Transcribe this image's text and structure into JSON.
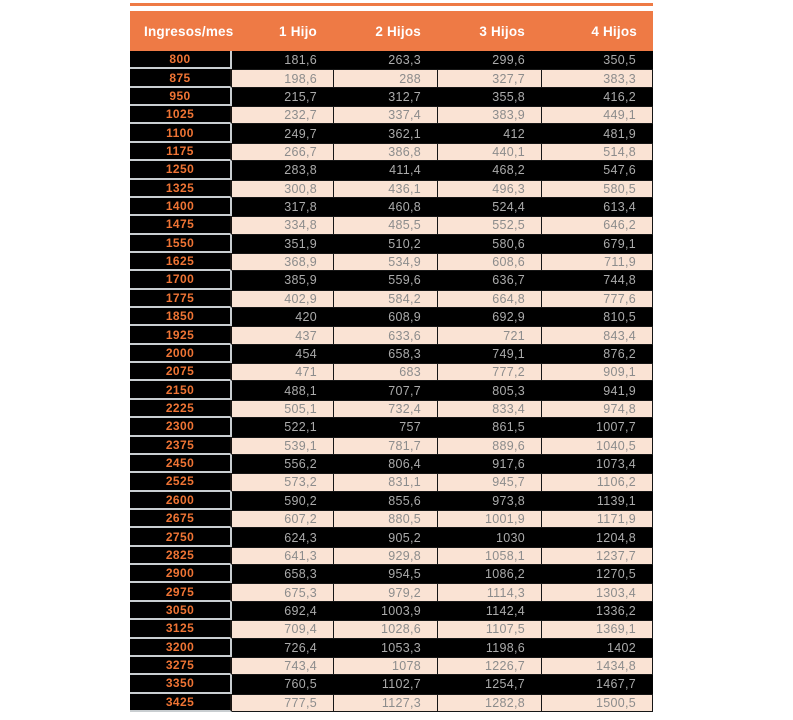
{
  "colors": {
    "header_bg": "#ee7a45",
    "income_text": "#ef7434",
    "row_pink": "#fae3d4",
    "row_dark": "#000000",
    "value_text_on_dark": "#ababab",
    "value_text_on_pink": "#8c8c8c",
    "separator_gray": "#c9ced1"
  },
  "chart_data": {
    "type": "table",
    "columns": [
      "Ingresos/mes",
      "1 Hijo",
      "2 Hijos",
      "3 Hijos",
      "4 Hijos"
    ],
    "rows": [
      {
        "income": "800",
        "values": [
          "181,6",
          "263,3",
          "299,6",
          "350,5"
        ]
      },
      {
        "income": "875",
        "values": [
          "198,6",
          "288",
          "327,7",
          "383,3"
        ]
      },
      {
        "income": "950",
        "values": [
          "215,7",
          "312,7",
          "355,8",
          "416,2"
        ]
      },
      {
        "income": "1025",
        "values": [
          "232,7",
          "337,4",
          "383,9",
          "449,1"
        ]
      },
      {
        "income": "1100",
        "values": [
          "249,7",
          "362,1",
          "412",
          "481,9"
        ]
      },
      {
        "income": "1175",
        "values": [
          "266,7",
          "386,8",
          "440,1",
          "514,8"
        ]
      },
      {
        "income": "1250",
        "values": [
          "283,8",
          "411,4",
          "468,2",
          "547,6"
        ]
      },
      {
        "income": "1325",
        "values": [
          "300,8",
          "436,1",
          "496,3",
          "580,5"
        ]
      },
      {
        "income": "1400",
        "values": [
          "317,8",
          "460,8",
          "524,4",
          "613,4"
        ]
      },
      {
        "income": "1475",
        "values": [
          "334,8",
          "485,5",
          "552,5",
          "646,2"
        ]
      },
      {
        "income": "1550",
        "values": [
          "351,9",
          "510,2",
          "580,6",
          "679,1"
        ]
      },
      {
        "income": "1625",
        "values": [
          "368,9",
          "534,9",
          "608,6",
          "711,9"
        ]
      },
      {
        "income": "1700",
        "values": [
          "385,9",
          "559,6",
          "636,7",
          "744,8"
        ]
      },
      {
        "income": "1775",
        "values": [
          "402,9",
          "584,2",
          "664,8",
          "777,6"
        ]
      },
      {
        "income": "1850",
        "values": [
          "420",
          "608,9",
          "692,9",
          "810,5"
        ]
      },
      {
        "income": "1925",
        "values": [
          "437",
          "633,6",
          "721",
          "843,4"
        ]
      },
      {
        "income": "2000",
        "values": [
          "454",
          "658,3",
          "749,1",
          "876,2"
        ]
      },
      {
        "income": "2075",
        "values": [
          "471",
          "683",
          "777,2",
          "909,1"
        ]
      },
      {
        "income": "2150",
        "values": [
          "488,1",
          "707,7",
          "805,3",
          "941,9"
        ]
      },
      {
        "income": "2225",
        "values": [
          "505,1",
          "732,4",
          "833,4",
          "974,8"
        ]
      },
      {
        "income": "2300",
        "values": [
          "522,1",
          "757",
          "861,5",
          "1007,7"
        ]
      },
      {
        "income": "2375",
        "values": [
          "539,1",
          "781,7",
          "889,6",
          "1040,5"
        ]
      },
      {
        "income": "2450",
        "values": [
          "556,2",
          "806,4",
          "917,6",
          "1073,4"
        ]
      },
      {
        "income": "2525",
        "values": [
          "573,2",
          "831,1",
          "945,7",
          "1106,2"
        ]
      },
      {
        "income": "2600",
        "values": [
          "590,2",
          "855,6",
          "973,8",
          "1139,1"
        ]
      },
      {
        "income": "2675",
        "values": [
          "607,2",
          "880,5",
          "1001,9",
          "1171,9"
        ]
      },
      {
        "income": "2750",
        "values": [
          "624,3",
          "905,2",
          "1030",
          "1204,8"
        ]
      },
      {
        "income": "2825",
        "values": [
          "641,3",
          "929,8",
          "1058,1",
          "1237,7"
        ]
      },
      {
        "income": "2900",
        "values": [
          "658,3",
          "954,5",
          "1086,2",
          "1270,5"
        ]
      },
      {
        "income": "2975",
        "values": [
          "675,3",
          "979,2",
          "1114,3",
          "1303,4"
        ]
      },
      {
        "income": "3050",
        "values": [
          "692,4",
          "1003,9",
          "1142,4",
          "1336,2"
        ]
      },
      {
        "income": "3125",
        "values": [
          "709,4",
          "1028,6",
          "1107,5",
          "1369,1"
        ]
      },
      {
        "income": "3200",
        "values": [
          "726,4",
          "1053,3",
          "1198,6",
          "1402"
        ]
      },
      {
        "income": "3275",
        "values": [
          "743,4",
          "1078",
          "1226,7",
          "1434,8"
        ]
      },
      {
        "income": "3350",
        "values": [
          "760,5",
          "1102,7",
          "1254,7",
          "1467,7"
        ]
      },
      {
        "income": "3425",
        "values": [
          "777,5",
          "1127,3",
          "1282,8",
          "1500,5"
        ]
      }
    ]
  }
}
